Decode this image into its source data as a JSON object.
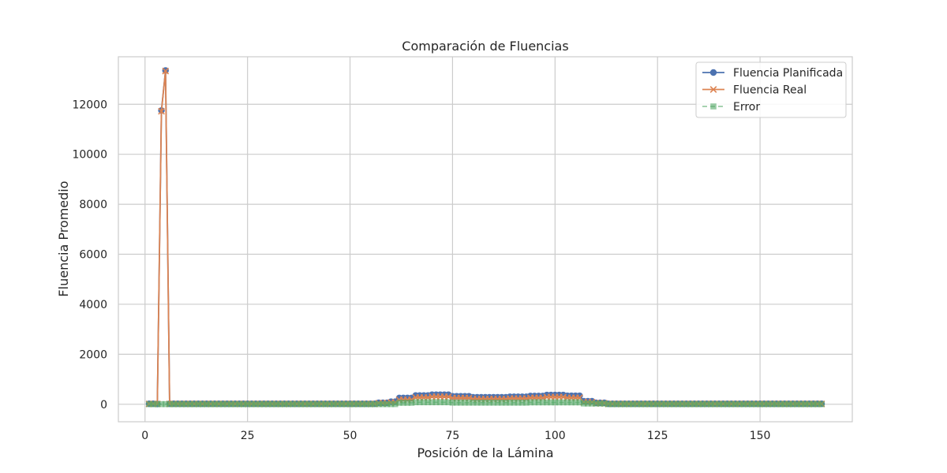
{
  "chart_data": {
    "type": "line",
    "title": "Comparación de Fluencias",
    "xlabel": "Posición de la Lámina",
    "ylabel": "Fluencia Promedio",
    "xlim": [
      -6.5,
      172.5
    ],
    "ylim": [
      -700,
      13900
    ],
    "xticks": [
      0,
      25,
      50,
      75,
      100,
      125,
      150
    ],
    "yticks": [
      0,
      2000,
      4000,
      6000,
      8000,
      10000,
      12000
    ],
    "grid": true,
    "legend_position": "top-right",
    "x_start": 1,
    "x_end": 165,
    "series": [
      {
        "name": "Fluencia Planificada",
        "color": "#4c72b0",
        "marker": "circle",
        "linestyle": "solid",
        "default": 20,
        "segments": [
          {
            "from": 1,
            "to": 2,
            "value": 20
          },
          {
            "from": 3,
            "to": 3,
            "value": 10
          },
          {
            "from": 4,
            "to": 4,
            "value": 11750
          },
          {
            "from": 5,
            "to": 5,
            "value": 13350
          },
          {
            "from": 6,
            "to": 56,
            "value": 20
          },
          {
            "from": 57,
            "to": 59,
            "value": 60
          },
          {
            "from": 60,
            "to": 61,
            "value": 100
          },
          {
            "from": 62,
            "to": 65,
            "value": 250
          },
          {
            "from": 66,
            "to": 69,
            "value": 350
          },
          {
            "from": 70,
            "to": 74,
            "value": 380
          },
          {
            "from": 75,
            "to": 79,
            "value": 320
          },
          {
            "from": 80,
            "to": 88,
            "value": 280
          },
          {
            "from": 89,
            "to": 93,
            "value": 300
          },
          {
            "from": 94,
            "to": 97,
            "value": 330
          },
          {
            "from": 98,
            "to": 102,
            "value": 370
          },
          {
            "from": 103,
            "to": 106,
            "value": 340
          },
          {
            "from": 107,
            "to": 109,
            "value": 120
          },
          {
            "from": 110,
            "to": 112,
            "value": 60
          },
          {
            "from": 113,
            "to": 165,
            "value": 20
          }
        ]
      },
      {
        "name": "Fluencia Real",
        "color": "#dd8452",
        "marker": "x",
        "linestyle": "solid",
        "default": 15,
        "segments": [
          {
            "from": 1,
            "to": 3,
            "value": 15
          },
          {
            "from": 4,
            "to": 4,
            "value": 11720
          },
          {
            "from": 5,
            "to": 5,
            "value": 13330
          },
          {
            "from": 6,
            "to": 56,
            "value": 15
          },
          {
            "from": 57,
            "to": 59,
            "value": 40
          },
          {
            "from": 60,
            "to": 61,
            "value": 70
          },
          {
            "from": 62,
            "to": 65,
            "value": 180
          },
          {
            "from": 66,
            "to": 69,
            "value": 270
          },
          {
            "from": 70,
            "to": 74,
            "value": 300
          },
          {
            "from": 75,
            "to": 79,
            "value": 250
          },
          {
            "from": 80,
            "to": 88,
            "value": 210
          },
          {
            "from": 89,
            "to": 93,
            "value": 230
          },
          {
            "from": 94,
            "to": 97,
            "value": 260
          },
          {
            "from": 98,
            "to": 102,
            "value": 290
          },
          {
            "from": 103,
            "to": 106,
            "value": 260
          },
          {
            "from": 107,
            "to": 109,
            "value": 80
          },
          {
            "from": 110,
            "to": 112,
            "value": 40
          },
          {
            "from": 113,
            "to": 165,
            "value": 15
          }
        ]
      },
      {
        "name": "Error",
        "color": "#55a868",
        "marker": "square",
        "linestyle": "dashed",
        "default": 5,
        "segments": [
          {
            "from": 1,
            "to": 61,
            "value": 5
          },
          {
            "from": 62,
            "to": 65,
            "value": 60
          },
          {
            "from": 66,
            "to": 74,
            "value": 80
          },
          {
            "from": 75,
            "to": 93,
            "value": 65
          },
          {
            "from": 94,
            "to": 106,
            "value": 75
          },
          {
            "from": 107,
            "to": 112,
            "value": 30
          },
          {
            "from": 113,
            "to": 165,
            "value": 5
          }
        ]
      }
    ]
  }
}
